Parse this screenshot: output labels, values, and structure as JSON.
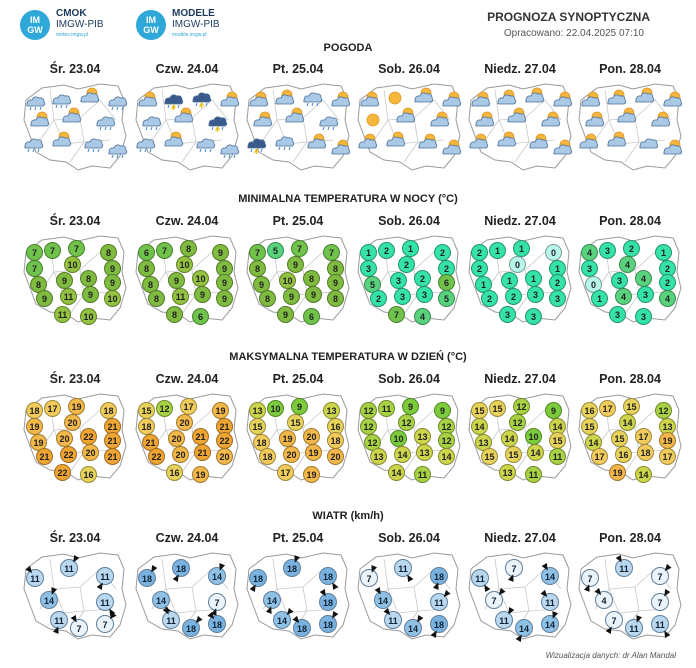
{
  "logos": [
    {
      "badge": [
        "IM",
        "GW"
      ],
      "name": "CMOK",
      "sub": "IMGW-PIB",
      "url": "meteo.imgw.pl"
    },
    {
      "badge": [
        "IM",
        "GW"
      ],
      "name": "MODELE",
      "sub": "IMGW-PIB",
      "url": "modele.imgw.pl"
    }
  ],
  "header": {
    "title": "PROGNOZA SYNOPTYCZNA",
    "subtitle": "Opracowano: 22.04.2025 07:10"
  },
  "days": [
    "Śr. 23.04",
    "Czw. 24.04",
    "Pt. 25.04",
    "Sob. 26.04",
    "Niedz. 27.04",
    "Pon. 28.04"
  ],
  "sections": {
    "weather": "POGODA",
    "tmin": "MINIMALNA TEMPERATURA W NOCY (°C)",
    "tmax": "MAKSYMALNA TEMPERATURA W DZIEŃ (°C)",
    "wind": "WIATR (km/h)"
  },
  "weather_icons": [
    [
      "cloud-rain",
      "cloud-rain",
      "sun-cloud",
      "cloud-rain",
      "sun-cloud",
      "sun-cloud",
      "cloud-rain",
      "cloud-rain",
      "sun-cloud",
      "cloud-rain",
      "cloud-rain"
    ],
    [
      "sun-cloud",
      "cloud-storm",
      "cloud-storm",
      "sun-cloud",
      "cloud-rain",
      "sun-cloud",
      "cloud-storm",
      "cloud-rain",
      "sun-cloud",
      "cloud-rain",
      "cloud-rain"
    ],
    [
      "sun-cloud",
      "sun-cloud",
      "cloud-rain",
      "sun-cloud",
      "sun-cloud",
      "sun-cloud",
      "cloud-rain",
      "cloud-storm",
      "cloud-rain",
      "sun-cloud",
      "sun-cloud"
    ],
    [
      "sun-cloud",
      "sun",
      "sun-cloud",
      "sun-cloud",
      "sun",
      "sun-cloud",
      "sun-cloud",
      "sun-cloud",
      "sun-cloud",
      "sun-cloud",
      "sun-cloud"
    ],
    [
      "sun-cloud",
      "sun-cloud",
      "sun-cloud",
      "sun-cloud",
      "sun-cloud",
      "sun-cloud",
      "sun-cloud",
      "sun-cloud",
      "sun-cloud",
      "sun-cloud",
      "sun-cloud"
    ],
    [
      "sun-cloud",
      "sun-cloud",
      "sun-cloud",
      "sun-cloud",
      "sun-cloud",
      "sun-cloud",
      "sun-cloud",
      "sun-cloud",
      "sun-cloud",
      "cloud",
      "sun-cloud"
    ]
  ],
  "tmin": [
    [
      "7",
      "7",
      "7",
      "8",
      "7",
      "10",
      "9",
      "8",
      "9",
      "8",
      "9",
      "9",
      "11",
      "9",
      "10",
      "11",
      "10"
    ],
    [
      "6",
      "7",
      "8",
      "9",
      "8",
      "10",
      "9",
      "8",
      "9",
      "10",
      "9",
      "8",
      "11",
      "9",
      "9",
      "8",
      "6"
    ],
    [
      "7",
      "5",
      "7",
      "7",
      "8",
      "9",
      "8",
      "9",
      "10",
      "8",
      "9",
      "8",
      "9",
      "9",
      "8",
      "9",
      "6"
    ],
    [
      "1",
      "2",
      "1",
      "2",
      "3",
      "2",
      "2",
      "5",
      "3",
      "2",
      "6",
      "2",
      "3",
      "3",
      "5",
      "7",
      "4"
    ],
    [
      "2",
      "1",
      "1",
      "0",
      "2",
      "0",
      "1",
      "1",
      "1",
      "1",
      "2",
      "2",
      "2",
      "3",
      "3",
      "3",
      "3"
    ],
    [
      "4",
      "3",
      "2",
      "1",
      "3",
      "4",
      "2",
      "0",
      "3",
      "4",
      "2",
      "1",
      "4",
      "3",
      "4",
      "3",
      "3"
    ]
  ],
  "tmax": [
    [
      "18",
      "17",
      "19",
      "18",
      "19",
      "20",
      "21",
      "19",
      "20",
      "22",
      "21",
      "21",
      "22",
      "20",
      "21",
      "22",
      "16"
    ],
    [
      "15",
      "12",
      "17",
      "19",
      "18",
      "20",
      "21",
      "21",
      "20",
      "21",
      "22",
      "22",
      "20",
      "21",
      "20",
      "16",
      "19"
    ],
    [
      "13",
      "10",
      "9",
      "13",
      "15",
      "15",
      "16",
      "18",
      "19",
      "20",
      "18",
      "18",
      "20",
      "19",
      "20",
      "17",
      "19"
    ],
    [
      "12",
      "11",
      "9",
      "9",
      "12",
      "12",
      "12",
      "12",
      "10",
      "13",
      "12",
      "13",
      "14",
      "13",
      "14",
      "14",
      "11"
    ],
    [
      "15",
      "15",
      "12",
      "9",
      "14",
      "12",
      "14",
      "13",
      "14",
      "10",
      "15",
      "15",
      "15",
      "14",
      "11",
      "13",
      "11"
    ],
    [
      "16",
      "17",
      "15",
      "12",
      "15",
      "14",
      "13",
      "14",
      "15",
      "17",
      "19",
      "17",
      "16",
      "18",
      "17",
      "19",
      "14"
    ]
  ],
  "wind": [
    [
      "11",
      "11",
      "11",
      "14",
      "11",
      "11",
      "7",
      "7"
    ],
    [
      "18",
      "18",
      "14",
      "14",
      "7",
      "11",
      "18",
      "18"
    ],
    [
      "18",
      "18",
      "18",
      "14",
      "18",
      "14",
      "18",
      "18"
    ],
    [
      "7",
      "11",
      "18",
      "14",
      "11",
      "11",
      "14",
      "18"
    ],
    [
      "11",
      "7",
      "14",
      "7",
      "11",
      "11",
      "14",
      "14"
    ],
    [
      "7",
      "11",
      "7",
      "4",
      "7",
      "7",
      "11",
      "11"
    ]
  ],
  "footer": "Wizualizacja danych: dr Alan Mandal"
}
